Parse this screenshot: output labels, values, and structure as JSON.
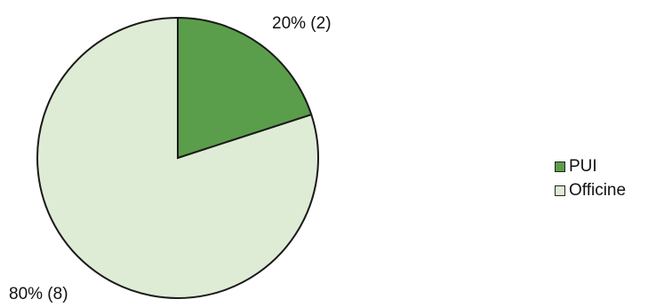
{
  "chart_data": {
    "type": "pie",
    "title": "",
    "categories": [
      "PUI",
      "Officine"
    ],
    "values": [
      2,
      8
    ],
    "percentages": [
      20,
      80
    ],
    "slice_labels": [
      "20% (2)",
      "80% (8)"
    ],
    "colors": [
      "#5a9e4b",
      "#dfecd5"
    ],
    "outline_color": "#1a1a1a",
    "legend": {
      "placement": "right",
      "entries": [
        "PUI",
        "Officine"
      ]
    },
    "start_angle_deg": 0,
    "direction": "clockwise-from-top"
  }
}
